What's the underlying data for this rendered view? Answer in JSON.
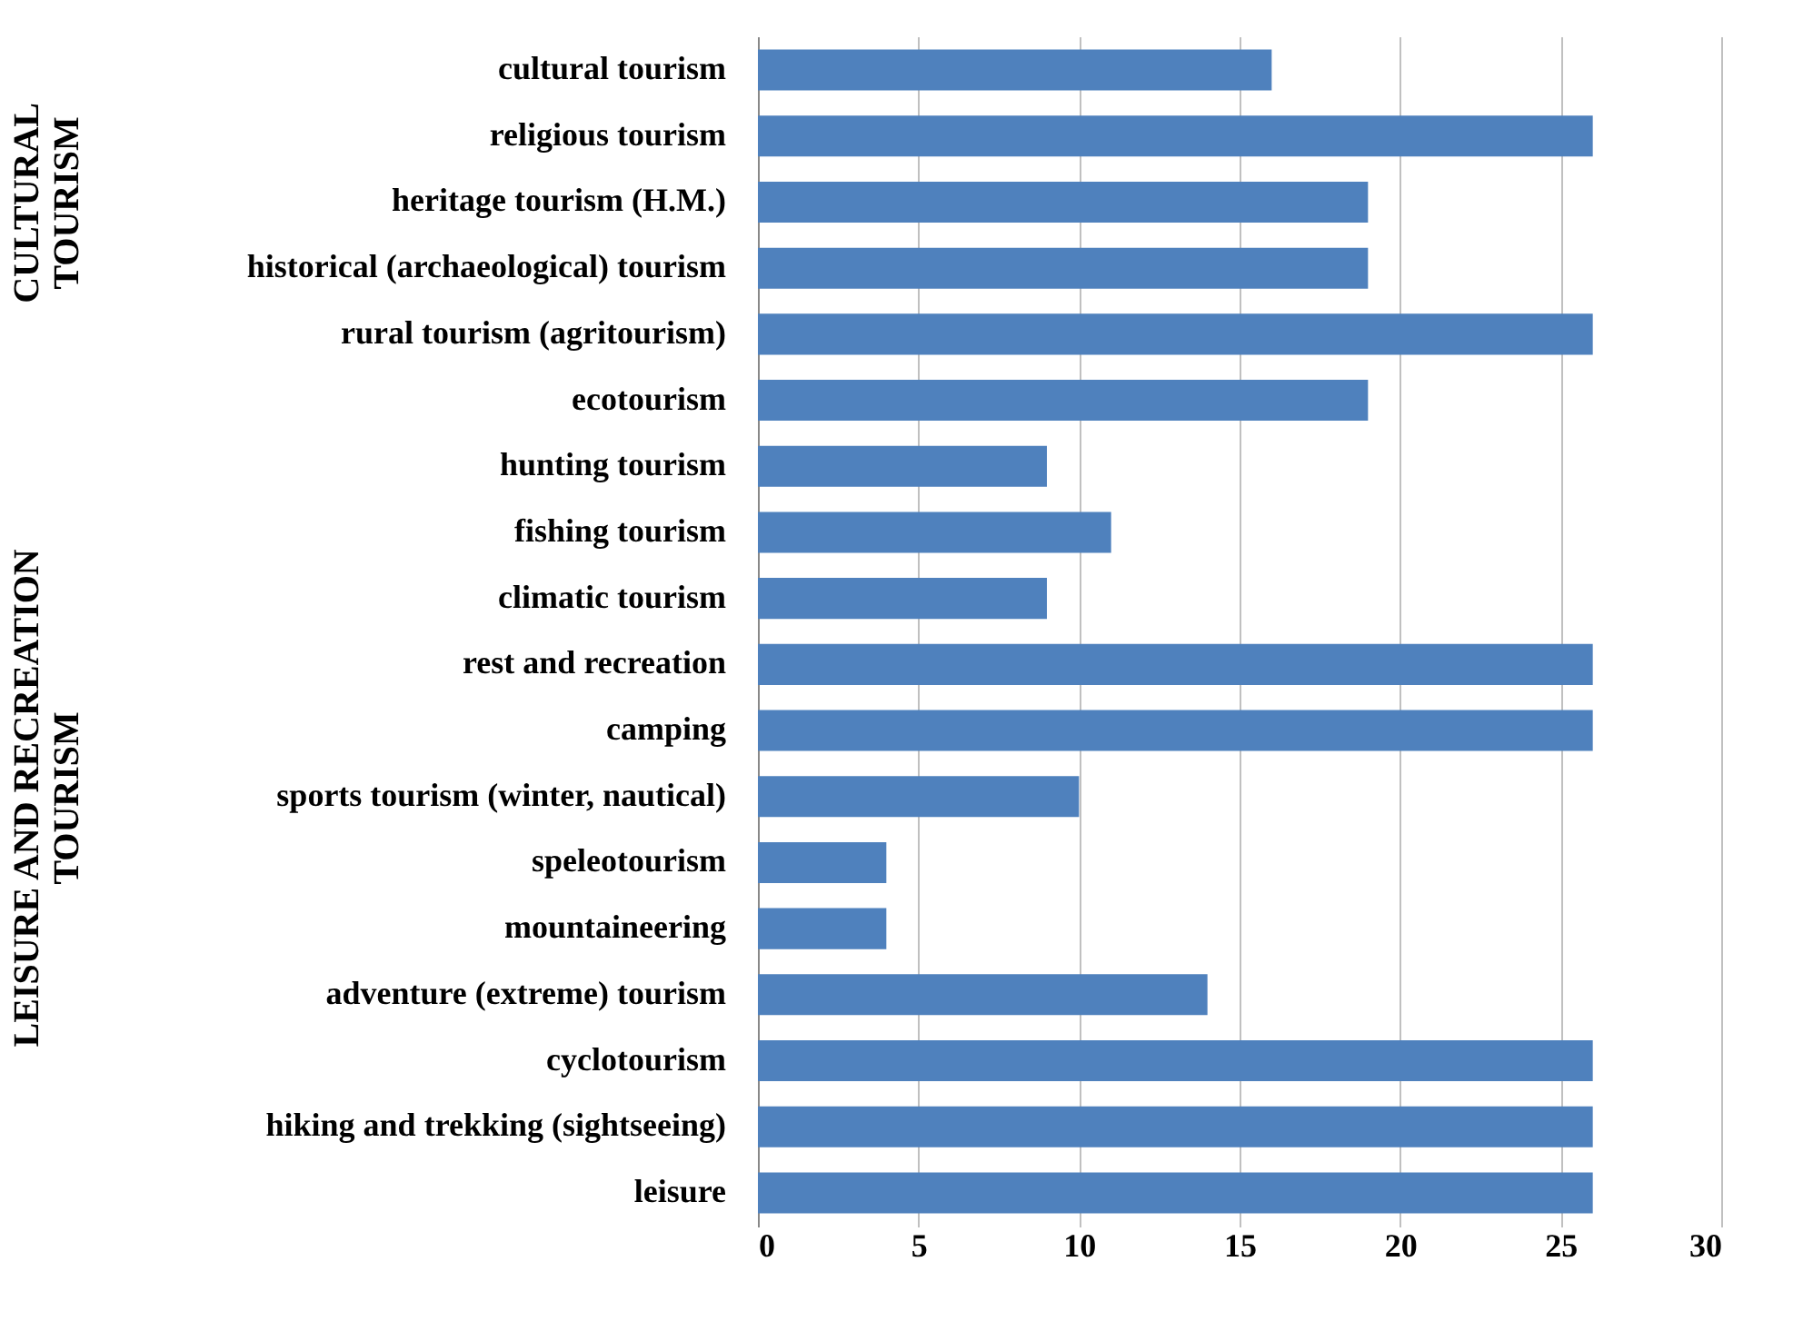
{
  "chart_data": {
    "type": "bar",
    "orientation": "horizontal",
    "categories": [
      "cultural tourism",
      "religious tourism",
      "heritage tourism (H.M.)",
      "historical (archaeological) tourism",
      "rural tourism (agritourism)",
      "ecotourism",
      "hunting tourism",
      "fishing tourism",
      "climatic tourism",
      "rest and recreation",
      "camping",
      "sports tourism (winter, nautical)",
      "speleotourism",
      "mountaineering",
      "adventure (extreme) tourism",
      "cyclotourism",
      "hiking and trekking (sightseeing)",
      "leisure"
    ],
    "values": [
      16,
      26,
      19,
      19,
      26,
      19,
      9,
      11,
      9,
      26,
      26,
      10,
      4,
      4,
      14,
      26,
      26,
      26
    ],
    "color": "#4f81bd",
    "xlim": [
      0,
      30
    ],
    "xticks": [
      0,
      5,
      10,
      15,
      20,
      25,
      30
    ],
    "grid": "x",
    "annotations": [
      "CULTURAL TOURISM",
      "LEISURE AND RECREATION TOURISM"
    ]
  }
}
